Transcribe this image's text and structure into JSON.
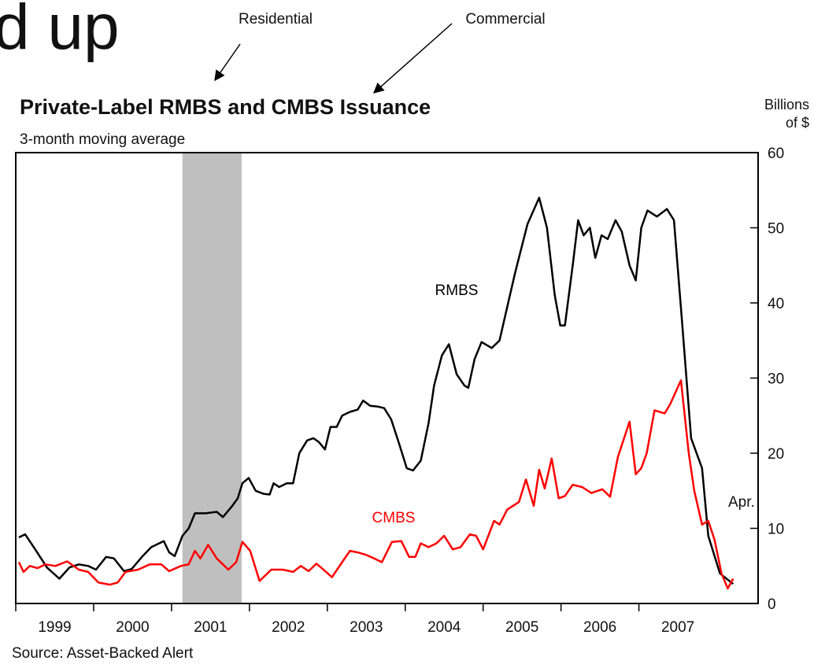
{
  "slide_title_fragment": "d up",
  "annotations": [
    "Residential",
    "Commercial"
  ],
  "chart_data": {
    "type": "line",
    "title": "Private-Label RMBS and CMBS Issuance",
    "subtitle": "3-month moving average",
    "y_axis_label": [
      "Billions",
      "of $"
    ],
    "source": "Source: Asset-Backed Alert",
    "xlim": [
      1999,
      2008.53
    ],
    "ylim": [
      0,
      60
    ],
    "xticks": [
      1999,
      2000,
      2001,
      2002,
      2003,
      2004,
      2005,
      2006,
      2007
    ],
    "yticks": [
      0,
      10,
      20,
      30,
      40,
      50,
      60
    ],
    "grid": false,
    "shaded_period": [
      2001.14,
      2001.9
    ],
    "shade_color": "#bfbfbf",
    "end_label": "Apr.",
    "series": [
      {
        "name": "RMBS",
        "color": "#000000",
        "x": [
          1999.04,
          1999.12,
          1999.25,
          1999.4,
          1999.56,
          1999.69,
          1999.81,
          1999.93,
          2000.03,
          2000.16,
          2000.26,
          2000.39,
          2000.49,
          2000.62,
          2000.74,
          2000.9,
          2000.97,
          2001.04,
          2001.14,
          2001.22,
          2001.3,
          2001.44,
          2001.58,
          2001.66,
          2001.78,
          2001.85,
          2001.91,
          2001.99,
          2002.08,
          2002.18,
          2002.26,
          2002.31,
          2002.38,
          2002.48,
          2002.56,
          2002.64,
          2002.74,
          2002.82,
          2002.89,
          2002.97,
          2003.04,
          2003.12,
          2003.19,
          2003.29,
          2003.39,
          2003.46,
          2003.55,
          2003.65,
          2003.73,
          2003.82,
          2003.93,
          2004.02,
          2004.1,
          2004.2,
          2004.3,
          2004.37,
          2004.47,
          2004.56,
          2004.66,
          2004.76,
          2004.81,
          2004.89,
          2004.98,
          2005.11,
          2005.21,
          2005.41,
          2005.57,
          2005.72,
          2005.82,
          2005.92,
          2005.99,
          2006.05,
          2006.15,
          2006.22,
          2006.29,
          2006.37,
          2006.44,
          2006.52,
          2006.6,
          2006.7,
          2006.78,
          2006.88,
          2006.96,
          2007.03,
          2007.11,
          2007.23,
          2007.36,
          2007.45,
          2007.55,
          2007.67,
          2007.81,
          2007.89,
          2008.04,
          2008.21
        ],
        "values": [
          8.8,
          9.2,
          7.2,
          4.8,
          3.3,
          4.8,
          5.2,
          5.0,
          4.5,
          6.2,
          6.0,
          4.3,
          4.6,
          6.2,
          7.5,
          8.3,
          6.8,
          6.3,
          9.0,
          10.0,
          12.0,
          12.0,
          12.2,
          11.5,
          13.0,
          14.0,
          16.0,
          16.7,
          15.0,
          14.6,
          14.5,
          16.0,
          15.5,
          16.0,
          16.0,
          20.0,
          21.7,
          22.0,
          21.5,
          20.5,
          23.5,
          23.5,
          25.0,
          25.5,
          25.8,
          27.0,
          26.3,
          26.2,
          26.0,
          24.5,
          21.0,
          18.0,
          17.7,
          19.0,
          24.0,
          29.0,
          33.0,
          34.5,
          30.5,
          29.0,
          28.7,
          32.5,
          34.8,
          34.0,
          35.0,
          44.0,
          50.5,
          54.0,
          50.0,
          41.0,
          37.0,
          37.0,
          45.0,
          51.0,
          49.0,
          50.0,
          46.0,
          49.0,
          48.5,
          51.0,
          49.5,
          45.0,
          43.0,
          50.0,
          52.3,
          51.5,
          52.5,
          51.0,
          38.0,
          22.0,
          18.0,
          9.0,
          4.0,
          2.6
        ]
      },
      {
        "name": "CMBS",
        "color": "#ff0000",
        "x": [
          1999.04,
          1999.1,
          1999.18,
          1999.28,
          1999.38,
          1999.51,
          1999.66,
          1999.81,
          1999.93,
          2000.06,
          2000.21,
          2000.31,
          2000.41,
          2000.57,
          2000.72,
          2000.87,
          2000.97,
          2001.12,
          2001.22,
          2001.3,
          2001.37,
          2001.47,
          2001.58,
          2001.73,
          2001.83,
          2001.91,
          2002.01,
          2002.13,
          2002.28,
          2002.43,
          2002.56,
          2002.66,
          2002.76,
          2002.86,
          2002.94,
          2003.06,
          2003.19,
          2003.29,
          2003.39,
          2003.49,
          2003.6,
          2003.7,
          2003.83,
          2003.95,
          2004.05,
          2004.13,
          2004.2,
          2004.3,
          2004.4,
          2004.5,
          2004.61,
          2004.71,
          2004.83,
          2004.91,
          2005.0,
          2005.14,
          2005.21,
          2005.31,
          2005.46,
          2005.55,
          2005.65,
          2005.72,
          2005.79,
          2005.88,
          2005.97,
          2006.05,
          2006.15,
          2006.27,
          2006.39,
          2006.53,
          2006.63,
          2006.73,
          2006.88,
          2006.96,
          2007.03,
          2007.1,
          2007.2,
          2007.33,
          2007.4,
          2007.54,
          2007.64,
          2007.71,
          2007.81,
          2007.89,
          2007.97,
          2008.06,
          2008.14,
          2008.21
        ],
        "values": [
          5.5,
          4.2,
          5.0,
          4.7,
          5.2,
          5.0,
          5.6,
          4.5,
          4.2,
          2.8,
          2.5,
          2.8,
          4.2,
          4.5,
          5.2,
          5.2,
          4.3,
          5.0,
          5.2,
          7.0,
          6.0,
          7.8,
          6.0,
          4.5,
          5.5,
          8.2,
          7.0,
          3.0,
          4.5,
          4.5,
          4.2,
          5.0,
          4.3,
          5.3,
          4.6,
          3.5,
          5.5,
          7.0,
          6.8,
          6.5,
          6.0,
          5.5,
          8.2,
          8.3,
          6.2,
          6.2,
          8.0,
          7.5,
          8.0,
          9.0,
          7.2,
          7.5,
          9.2,
          9.0,
          7.2,
          11.0,
          10.5,
          12.5,
          13.5,
          16.5,
          13.0,
          17.8,
          15.3,
          19.3,
          14.0,
          14.3,
          15.8,
          15.5,
          14.7,
          15.2,
          14.2,
          19.5,
          24.2,
          17.2,
          18.0,
          20.0,
          25.7,
          25.3,
          26.5,
          29.7,
          20.0,
          15.0,
          10.5,
          11.0,
          8.5,
          4.0,
          2.0,
          3.3
        ]
      }
    ]
  }
}
